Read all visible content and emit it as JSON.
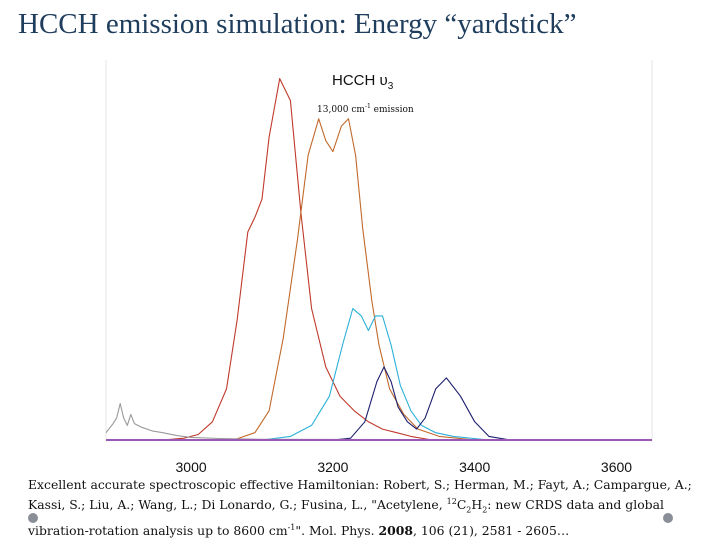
{
  "slide": {
    "title": "HCCH emission simulation: Energy “yardstick”"
  },
  "chart_data": {
    "type": "line",
    "title": "HCCH υ",
    "title_subscript": "3",
    "subtitle": "13,000 cm",
    "subtitle_sup": "-1",
    "subtitle_tail": " emission",
    "xlim": [
      2880,
      3650
    ],
    "ylim": [
      0,
      1.0
    ],
    "x_ticks": [
      "3000",
      "3200",
      "3400",
      "3600"
    ],
    "x_tick_values": [
      3000,
      3200,
      3400,
      3600
    ],
    "grid": false,
    "series": [
      {
        "color": "#c0392b",
        "x": [
          2880,
          2960,
          2990,
          3010,
          3030,
          3050,
          3065,
          3080,
          3090,
          3100,
          3110,
          3125,
          3140,
          3155,
          3170,
          3190,
          3210,
          3230,
          3250,
          3270,
          3290,
          3310,
          3340
        ],
        "y": [
          0.0,
          0.0,
          0.005,
          0.015,
          0.05,
          0.14,
          0.33,
          0.57,
          0.61,
          0.66,
          0.83,
          0.99,
          0.93,
          0.62,
          0.36,
          0.2,
          0.12,
          0.08,
          0.05,
          0.03,
          0.02,
          0.01,
          0.0
        ]
      },
      {
        "color": "#c06a2b",
        "x": [
          2880,
          3060,
          3090,
          3110,
          3130,
          3150,
          3165,
          3180,
          3190,
          3200,
          3212,
          3222,
          3232,
          3242,
          3255,
          3265,
          3280,
          3300,
          3320,
          3350,
          3400
        ],
        "y": [
          0.0,
          0.0,
          0.02,
          0.08,
          0.28,
          0.55,
          0.78,
          0.88,
          0.82,
          0.79,
          0.86,
          0.88,
          0.78,
          0.58,
          0.38,
          0.26,
          0.14,
          0.07,
          0.03,
          0.01,
          0.0
        ]
      },
      {
        "color": "#2bb0d8",
        "x": [
          2880,
          3100,
          3140,
          3170,
          3195,
          3215,
          3228,
          3240,
          3250,
          3260,
          3270,
          3282,
          3295,
          3310,
          3325,
          3345,
          3370,
          3420
        ],
        "y": [
          0.0,
          0.0,
          0.01,
          0.04,
          0.12,
          0.27,
          0.36,
          0.34,
          0.3,
          0.34,
          0.34,
          0.26,
          0.15,
          0.08,
          0.04,
          0.02,
          0.01,
          0.0
        ]
      },
      {
        "color": "#1c1f6e",
        "x": [
          2880,
          3200,
          3225,
          3245,
          3262,
          3272,
          3282,
          3292,
          3305,
          3318,
          3330,
          3345,
          3360,
          3380,
          3400,
          3420,
          3450
        ],
        "y": [
          0.0,
          0.0,
          0.005,
          0.05,
          0.16,
          0.2,
          0.16,
          0.09,
          0.05,
          0.03,
          0.06,
          0.14,
          0.17,
          0.12,
          0.05,
          0.01,
          0.0
        ]
      },
      {
        "color": "#9a9a9a",
        "x": [
          2880,
          2890,
          2895,
          2900,
          2905,
          2910,
          2915,
          2920,
          2930,
          2945,
          2960,
          2980,
          3000,
          3040,
          3100,
          3300,
          3600,
          3650
        ],
        "y": [
          0.02,
          0.045,
          0.06,
          0.1,
          0.06,
          0.04,
          0.07,
          0.045,
          0.035,
          0.025,
          0.02,
          0.012,
          0.007,
          0.004,
          0.002,
          0.001,
          0.001,
          0.001
        ]
      }
    ]
  },
  "citation": {
    "part1": "Excellent accurate spectroscopic effective Hamiltonian: Robert, S.; Herman, M.; Fayt, A.; Campargue, A.; Kassi, S.; Liu, A.; Wang, L.; Di Lonardo, G.; Fusina, L., \"Acetylene, ",
    "sup1": "12",
    "part2": "C",
    "sub1": "2",
    "part3": "H",
    "sub2": "2",
    "part4": ": new CRDS data and global vibration-rotation analysis up to 8600 cm",
    "sup2": "-1",
    "part5": "\". Mol. Phys. ",
    "bold_year": "2008",
    "part6": ", 106 (21), 2581 - 2605…"
  }
}
